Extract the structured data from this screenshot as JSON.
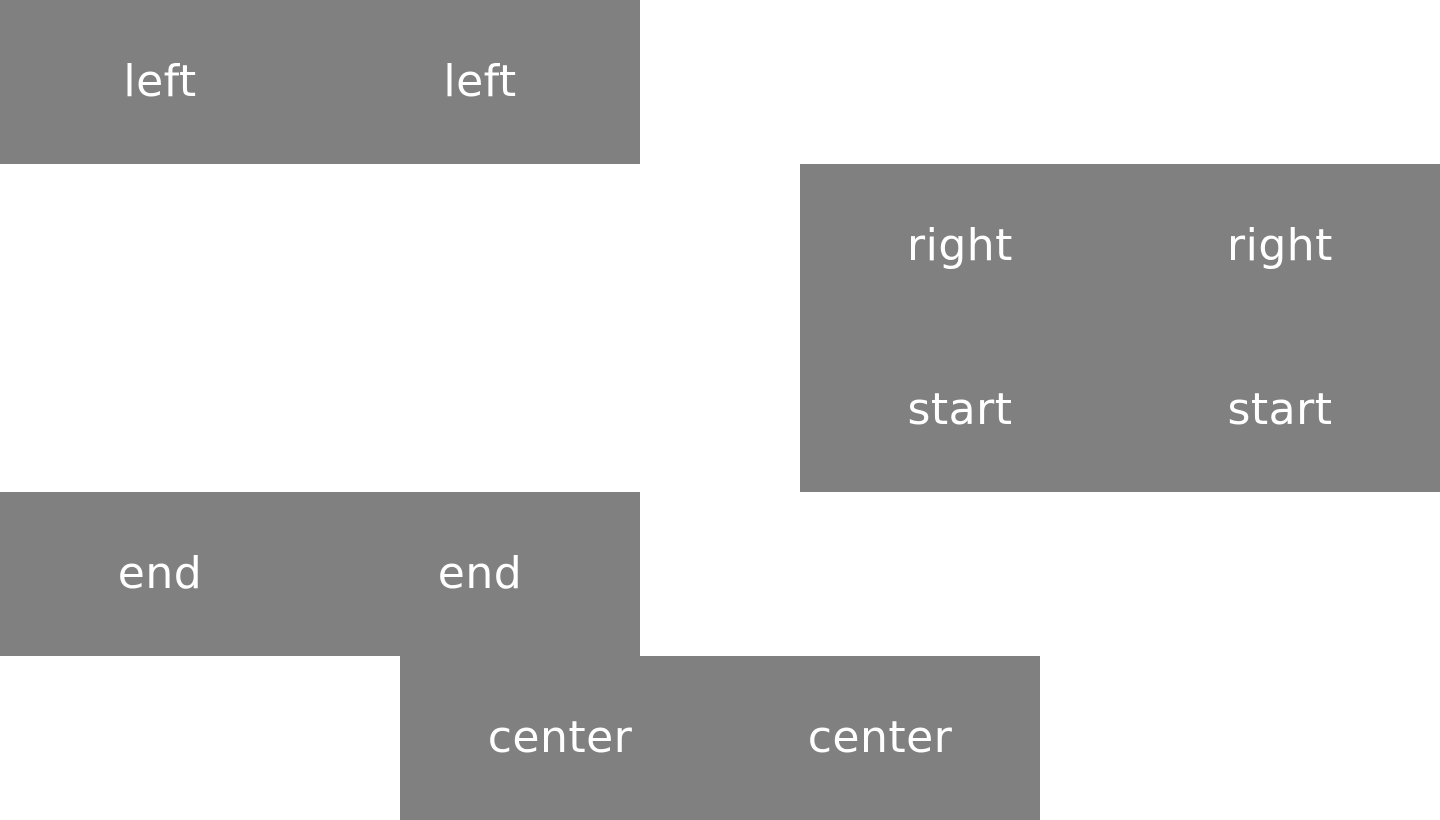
{
  "colors": {
    "background": "#ffffff",
    "block": "#808080",
    "text": "#ffffff"
  },
  "rows": [
    {
      "key": "left",
      "cells": [
        "left",
        "left"
      ]
    },
    {
      "key": "right",
      "cells": [
        "right",
        "right"
      ]
    },
    {
      "key": "start",
      "cells": [
        "start",
        "start"
      ]
    },
    {
      "key": "end",
      "cells": [
        "end",
        "end"
      ]
    },
    {
      "key": "center",
      "cells": [
        "center",
        "center"
      ]
    }
  ]
}
